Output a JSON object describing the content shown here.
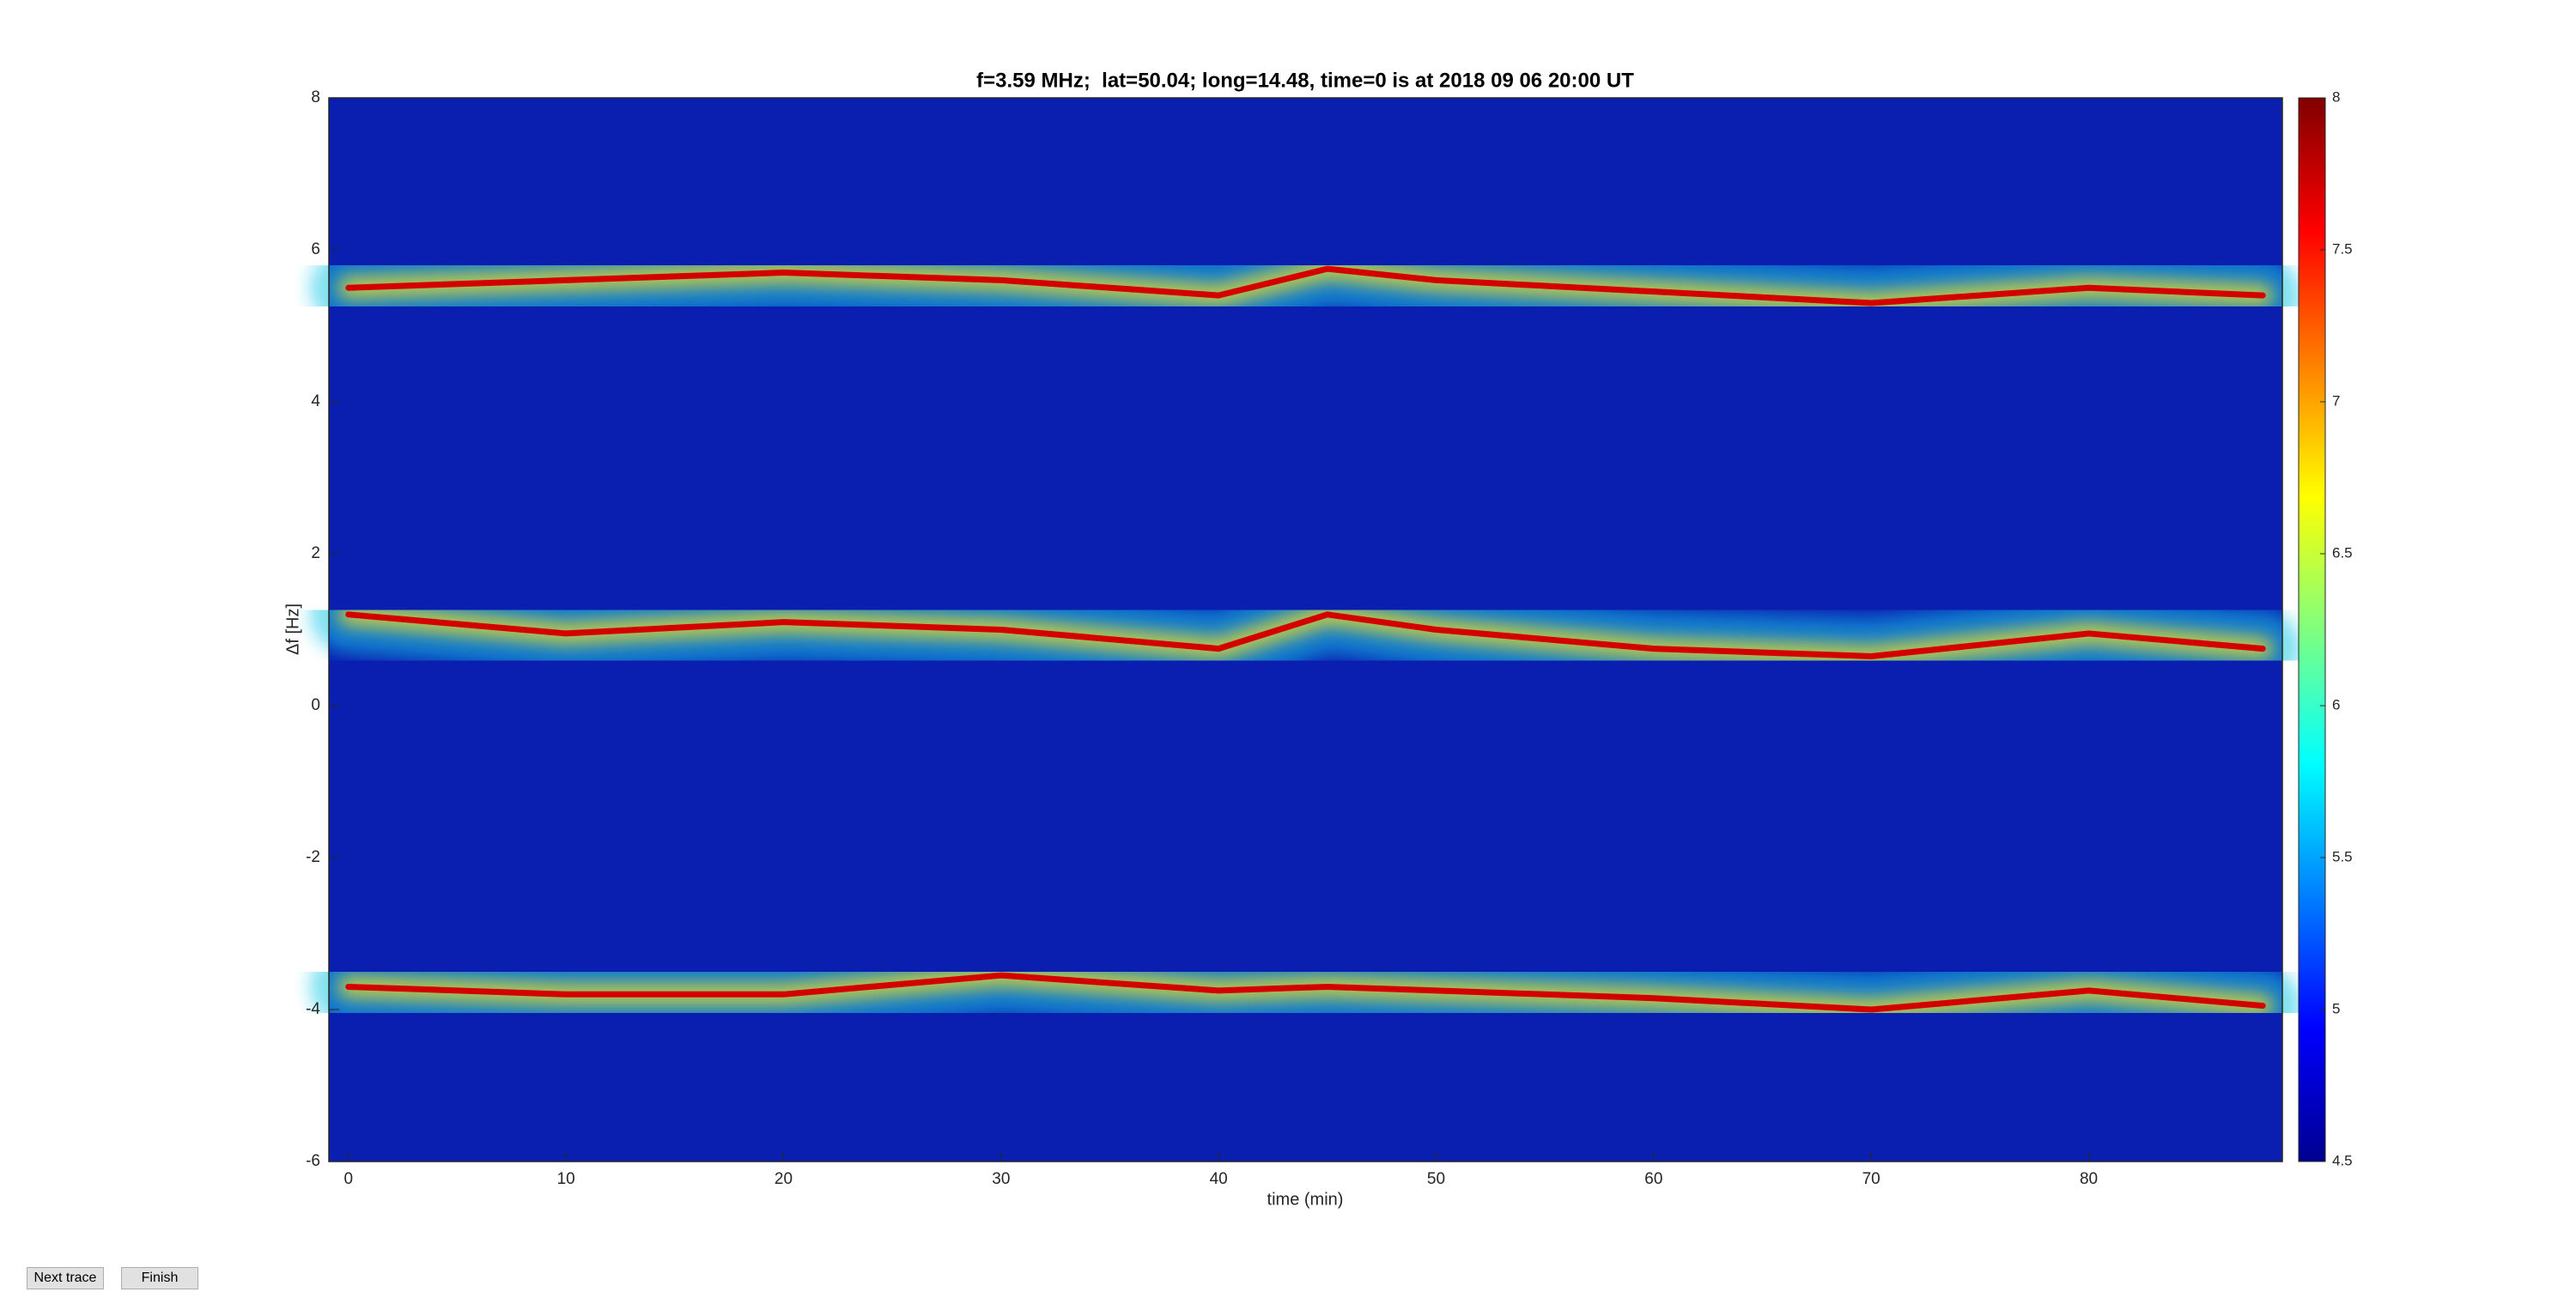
{
  "chart_data": {
    "type": "line",
    "title": "f=3.59 MHz;  lat=50.04; long=14.48, time=0 is at 2018 09 06 20:00 UT",
    "xlabel": "time (min)",
    "ylabel": "Δf [Hz]",
    "x": [
      0,
      10,
      20,
      30,
      40,
      45,
      50,
      60,
      70,
      80,
      88
    ],
    "series": [
      {
        "color": "#d40000",
        "values": [
          5.5,
          5.6,
          5.7,
          5.6,
          5.4,
          5.75,
          5.6,
          5.45,
          5.3,
          5.5,
          5.4
        ]
      },
      {
        "color": "#d40000",
        "values": [
          1.2,
          0.95,
          1.1,
          1.0,
          0.75,
          1.2,
          1.0,
          0.75,
          0.65,
          0.95,
          0.75
        ]
      },
      {
        "color": "#d40000",
        "values": [
          -3.7,
          -3.8,
          -3.8,
          -3.55,
          -3.75,
          -3.7,
          -3.75,
          -3.85,
          -4.0,
          -3.75,
          -3.95
        ]
      }
    ],
    "xlim": [
      -0.9,
      88.9
    ],
    "xticks": [
      0,
      10,
      20,
      30,
      40,
      50,
      60,
      70,
      80
    ],
    "ylim": [
      -6,
      8
    ],
    "yticks": [
      -6,
      -4,
      -2,
      0,
      2,
      4,
      6,
      8
    ],
    "background": "#0a1fb0",
    "colorbar": {
      "colormap": "jet",
      "lim": [
        4.5,
        8
      ],
      "ticks": [
        4.5,
        5,
        5.5,
        6,
        6.5,
        7,
        7.5,
        8
      ]
    }
  },
  "buttons": [
    "Next trace",
    "Finish"
  ]
}
